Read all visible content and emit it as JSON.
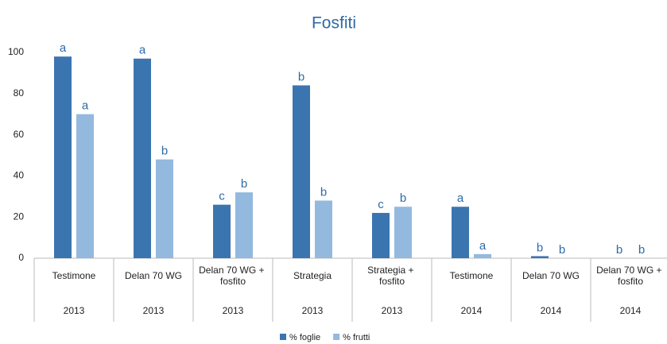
{
  "chart_data": {
    "type": "bar",
    "title": "Fosfiti",
    "categories": [
      "Testimone",
      "Delan 70 WG",
      "Delan 70 WG + fosfito",
      "Strategia",
      "Strategia + fosfito",
      "Testimone",
      "Delan 70 WG",
      "Delan 70 WG + fosfito"
    ],
    "years": [
      "2013",
      "2013",
      "2013",
      "2013",
      "2013",
      "2014",
      "2014",
      "2014"
    ],
    "series": [
      {
        "name": "% foglie",
        "color": "#3b75b0",
        "values": [
          98,
          97,
          26,
          84,
          22,
          25,
          1,
          0
        ],
        "annotations": [
          "a",
          "a",
          "c",
          "b",
          "c",
          "a",
          "b",
          "b"
        ]
      },
      {
        "name": "% frutti",
        "color": "#93b9df",
        "values": [
          70,
          48,
          32,
          28,
          25,
          2,
          0,
          0
        ],
        "annotations": [
          "a",
          "b",
          "b",
          "b",
          "b",
          "a",
          "b",
          "b"
        ]
      }
    ],
    "ylim": [
      0,
      100
    ],
    "yticks": [
      0,
      20,
      40,
      60,
      80,
      100
    ],
    "grid": false,
    "legend": "bottom"
  }
}
